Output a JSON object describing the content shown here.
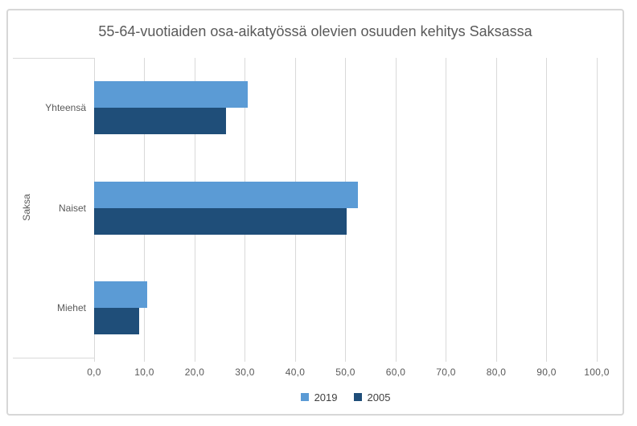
{
  "chart_data": {
    "type": "bar",
    "orientation": "horizontal",
    "title": "55-64-vuotiaiden osa-aikatyössä olevien osuuden kehitys Saksassa",
    "group_label": "Saksa",
    "categories": [
      "Yhteensä",
      "Naiset",
      "Miehet"
    ],
    "series": [
      {
        "name": "2019",
        "color": "#5B9BD5",
        "values": [
          30.5,
          52.5,
          10.6
        ]
      },
      {
        "name": "2005",
        "color": "#1F4E79",
        "values": [
          26.2,
          50.3,
          9.0
        ]
      }
    ],
    "xlim": [
      0,
      100
    ],
    "x_tick_values": [
      0,
      10,
      20,
      30,
      40,
      50,
      60,
      70,
      80,
      90,
      100
    ],
    "x_ticks": [
      "0,0",
      "10,0",
      "20,0",
      "30,0",
      "40,0",
      "50,0",
      "60,0",
      "70,0",
      "80,0",
      "90,0",
      "100,0"
    ],
    "grid": true,
    "legend_position": "bottom",
    "colors": {
      "gridline": "#D9D9D9",
      "frame_border": "#D7D7D7",
      "axis_text": "#595959",
      "legend_text": "#404040",
      "background": "#FFFFFF"
    }
  }
}
